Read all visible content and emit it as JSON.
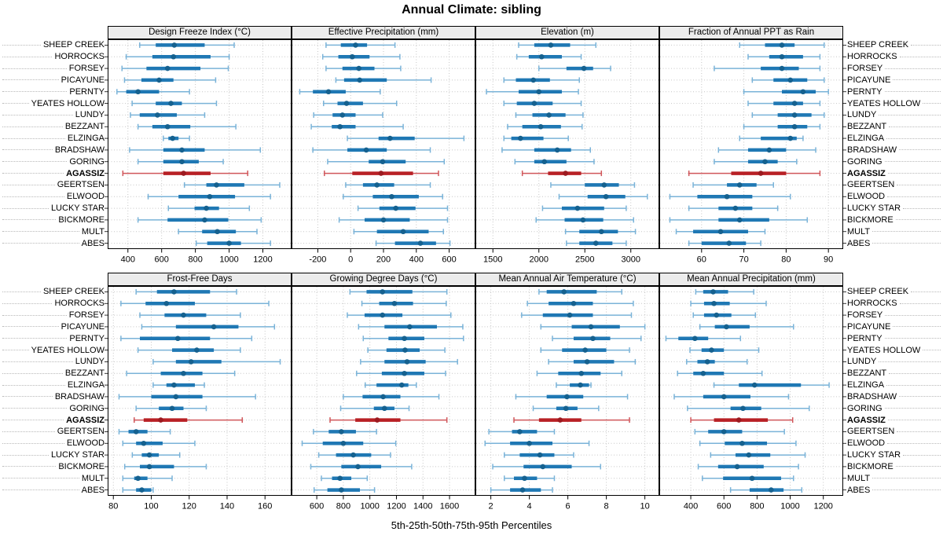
{
  "chart_data": {
    "type": "dotplot",
    "title": "Annual Climate: sibling",
    "footer": "5th-25th-50th-75th-95th Percentiles",
    "grid_on": true,
    "legend_position": "none",
    "grid": {
      "rows": 2,
      "cols": 4
    },
    "percentiles": [
      5,
      25,
      50,
      75,
      95
    ],
    "highlight_site": "AGASSIZ",
    "sites": [
      "SHEEP CREEK",
      "HORROCKS",
      "FORSEY",
      "PICAYUNE",
      "PERNTY",
      "YEATES HOLLOW",
      "LUNDY",
      "BEZZANT",
      "ELZINGA",
      "BRADSHAW",
      "GORING",
      "AGASSIZ",
      "GEERTSEN",
      "ELWOOD",
      "LUCKY STAR",
      "BICKMORE",
      "MULT",
      "ABES"
    ],
    "colors": {
      "series": "#1f78b4",
      "series_light": "#7ab3d8",
      "series_dark": "#15618f",
      "highlight": "#b82025",
      "highlight_light": "#d0565a",
      "highlight_dark": "#9c1a20",
      "gridline": "#c6c6c6",
      "strip_bg": "#ececec",
      "border": "#000000"
    },
    "panels": [
      {
        "title": "Design Freeze Index (°C)",
        "row": 0,
        "col": 0,
        "ticks": [
          400,
          600,
          800,
          1000,
          1200
        ],
        "xlim": [
          280,
          1370
        ],
        "values": [
          [
            470,
            565,
            675,
            855,
            1030
          ],
          [
            390,
            545,
            670,
            890,
            1000
          ],
          [
            365,
            510,
            635,
            830,
            995
          ],
          [
            380,
            480,
            585,
            670,
            920
          ],
          [
            335,
            390,
            460,
            585,
            765
          ],
          [
            425,
            565,
            655,
            720,
            925
          ],
          [
            415,
            470,
            575,
            690,
            855
          ],
          [
            460,
            545,
            635,
            770,
            1040
          ],
          [
            610,
            640,
            665,
            700,
            765
          ],
          [
            410,
            610,
            720,
            855,
            1185
          ],
          [
            460,
            610,
            720,
            820,
            965
          ],
          [
            370,
            610,
            730,
            890,
            1110
          ],
          [
            735,
            865,
            925,
            1090,
            1300
          ],
          [
            520,
            700,
            885,
            1035,
            1245
          ],
          [
            640,
            795,
            865,
            940,
            1120
          ],
          [
            460,
            635,
            855,
            995,
            1190
          ],
          [
            700,
            840,
            930,
            1040,
            1165
          ],
          [
            805,
            870,
            1000,
            1070,
            1245
          ]
        ]
      },
      {
        "title": "Effective Precipitation (mm)",
        "row": 0,
        "col": 1,
        "ticks": [
          -200,
          0,
          200,
          400,
          600
        ],
        "xlim": [
          -360,
          760
        ],
        "values": [
          [
            -150,
            -60,
            30,
            100,
            270
          ],
          [
            -170,
            -75,
            10,
            115,
            300
          ],
          [
            -150,
            -50,
            50,
            145,
            305
          ],
          [
            -90,
            -40,
            55,
            220,
            490
          ],
          [
            -310,
            -230,
            -135,
            -30,
            180
          ],
          [
            -165,
            -80,
            -25,
            75,
            280
          ],
          [
            -225,
            -110,
            -50,
            30,
            195
          ],
          [
            -240,
            -115,
            -65,
            30,
            320
          ],
          [
            -20,
            170,
            240,
            390,
            690
          ],
          [
            -230,
            -20,
            95,
            220,
            485
          ],
          [
            -140,
            110,
            195,
            335,
            570
          ],
          [
            -160,
            10,
            185,
            380,
            535
          ],
          [
            -30,
            75,
            160,
            265,
            485
          ],
          [
            -45,
            135,
            250,
            415,
            560
          ],
          [
            45,
            175,
            275,
            395,
            590
          ],
          [
            -70,
            85,
            200,
            360,
            590
          ],
          [
            20,
            160,
            320,
            475,
            565
          ],
          [
            155,
            270,
            425,
            520,
            605
          ]
        ]
      },
      {
        "title": "Elevation (m)",
        "row": 0,
        "col": 2,
        "ticks": [
          1500,
          2000,
          2500,
          3000
        ],
        "xlim": [
          1310,
          3310
        ],
        "values": [
          [
            1780,
            1950,
            2130,
            2340,
            2620
          ],
          [
            1760,
            1890,
            2030,
            2250,
            2460
          ],
          [
            2000,
            2300,
            2490,
            2590,
            2780
          ],
          [
            1620,
            1750,
            1940,
            2120,
            2440
          ],
          [
            1430,
            1780,
            2000,
            2250,
            2430
          ],
          [
            1620,
            1760,
            1950,
            2150,
            2460
          ],
          [
            1750,
            1930,
            2110,
            2290,
            2480
          ],
          [
            1660,
            1820,
            2020,
            2240,
            2470
          ],
          [
            1620,
            1700,
            1800,
            2050,
            2320
          ],
          [
            1600,
            1950,
            2200,
            2350,
            2560
          ],
          [
            1740,
            1950,
            2060,
            2300,
            2600
          ],
          [
            1820,
            2100,
            2290,
            2460,
            2680
          ],
          [
            2130,
            2500,
            2710,
            2870,
            3040
          ],
          [
            2220,
            2530,
            2730,
            2940,
            3180
          ],
          [
            2040,
            2250,
            2420,
            2710,
            2950
          ],
          [
            1970,
            2280,
            2480,
            2700,
            3030
          ],
          [
            2290,
            2440,
            2680,
            2860,
            3050
          ],
          [
            2300,
            2440,
            2620,
            2800,
            2950
          ]
        ]
      },
      {
        "title": "Fraction of Annual PPT as Rain",
        "row": 0,
        "col": 3,
        "ticks": [
          60,
          70,
          80,
          90
        ],
        "xlim": [
          50,
          93.5
        ],
        "values": [
          [
            69,
            75,
            79,
            82,
            89
          ],
          [
            71,
            76,
            79,
            84,
            88
          ],
          [
            63,
            74,
            79,
            83,
            88
          ],
          [
            72,
            77,
            81,
            85,
            89
          ],
          [
            70,
            79,
            84,
            87,
            90
          ],
          [
            71,
            77,
            82,
            84,
            88
          ],
          [
            72,
            78,
            82,
            86,
            89
          ],
          [
            70,
            78,
            82,
            85,
            88
          ],
          [
            69,
            74,
            81,
            82.5,
            84
          ],
          [
            64,
            71,
            76,
            80,
            87
          ],
          [
            63,
            71,
            75,
            78,
            82.5
          ],
          [
            57,
            67,
            74,
            80,
            88
          ],
          [
            58,
            66,
            69,
            73,
            77
          ],
          [
            52.5,
            59,
            66,
            72,
            81
          ],
          [
            57,
            64,
            68,
            72,
            78
          ],
          [
            52.5,
            64,
            69,
            76,
            85
          ],
          [
            54,
            58,
            64.5,
            71,
            75
          ],
          [
            57,
            60,
            66.5,
            70.5,
            74
          ]
        ]
      },
      {
        "title": "Frost-Free Days",
        "row": 1,
        "col": 0,
        "ticks": [
          80,
          100,
          120,
          140,
          160
        ],
        "xlim": [
          77,
          174
        ],
        "values": [
          [
            92,
            103,
            112,
            131,
            145
          ],
          [
            84,
            97,
            108,
            123,
            162
          ],
          [
            94,
            107,
            117,
            129,
            147
          ],
          [
            95,
            113,
            133,
            146,
            165
          ],
          [
            84,
            94,
            114,
            131,
            153
          ],
          [
            93,
            111,
            124,
            133,
            147
          ],
          [
            101,
            113,
            121,
            137,
            168
          ],
          [
            87,
            105,
            117,
            127,
            144
          ],
          [
            101,
            108,
            112,
            123,
            128
          ],
          [
            83,
            100,
            113,
            127,
            155
          ],
          [
            92,
            104,
            111,
            117,
            129
          ],
          [
            91,
            96,
            105,
            119,
            148
          ],
          [
            83,
            88,
            92,
            98,
            110
          ],
          [
            85,
            92,
            96,
            106,
            123
          ],
          [
            90,
            95,
            99,
            104,
            115
          ],
          [
            86,
            94,
            99,
            112,
            129
          ],
          [
            85,
            91,
            93,
            98,
            111
          ],
          [
            85,
            92,
            95,
            100,
            101
          ]
        ]
      },
      {
        "title": "Growing Degree Days (°C)",
        "row": 1,
        "col": 1,
        "ticks": [
          600,
          800,
          1000,
          1200,
          1400,
          1600
        ],
        "xlim": [
          410,
          1795
        ],
        "values": [
          [
            850,
            975,
            1095,
            1320,
            1580
          ],
          [
            940,
            1070,
            1185,
            1325,
            1575
          ],
          [
            830,
            960,
            1095,
            1245,
            1610
          ],
          [
            915,
            1110,
            1300,
            1505,
            1700
          ],
          [
            950,
            1140,
            1260,
            1410,
            1705
          ],
          [
            985,
            1125,
            1265,
            1375,
            1565
          ],
          [
            930,
            1110,
            1280,
            1420,
            1660
          ],
          [
            900,
            1090,
            1260,
            1410,
            1570
          ],
          [
            965,
            1050,
            1240,
            1290,
            1350
          ],
          [
            800,
            945,
            1100,
            1230,
            1520
          ],
          [
            780,
            1030,
            1110,
            1185,
            1295
          ],
          [
            700,
            890,
            1055,
            1230,
            1580
          ],
          [
            575,
            690,
            785,
            895,
            1050
          ],
          [
            490,
            645,
            800,
            950,
            1195
          ],
          [
            615,
            745,
            875,
            1010,
            1155
          ],
          [
            555,
            785,
            910,
            1085,
            1315
          ],
          [
            635,
            715,
            775,
            860,
            980
          ],
          [
            580,
            680,
            785,
            925,
            1035
          ]
        ]
      },
      {
        "title": "Mean Annual Air Temperature (°C)",
        "row": 1,
        "col": 2,
        "ticks": [
          2,
          4,
          6,
          8,
          10
        ],
        "xlim": [
          1.2,
          10.75
        ],
        "values": [
          [
            4.5,
            4.9,
            5.8,
            7.5,
            8.8
          ],
          [
            3.9,
            5.0,
            6.3,
            7.3,
            9.4
          ],
          [
            3.6,
            4.7,
            6.1,
            7.3,
            9.3
          ],
          [
            4.6,
            6.2,
            7.2,
            8.7,
            10.0
          ],
          [
            5.2,
            6.3,
            7.3,
            8.2,
            9.8
          ],
          [
            4.6,
            5.7,
            6.9,
            8.0,
            9.2
          ],
          [
            5.0,
            6.3,
            7.0,
            8.4,
            9.5
          ],
          [
            4.4,
            5.5,
            6.7,
            7.7,
            8.8
          ],
          [
            5.4,
            6.1,
            6.65,
            7.1,
            7.2
          ],
          [
            3.3,
            4.9,
            5.95,
            6.8,
            9.1
          ],
          [
            4.2,
            5.4,
            5.9,
            6.5,
            7.6
          ],
          [
            3.2,
            4.5,
            5.6,
            6.7,
            9.2
          ],
          [
            1.9,
            3.1,
            3.5,
            4.4,
            5.3
          ],
          [
            1.7,
            3.0,
            4.0,
            5.2,
            7.1
          ],
          [
            2.7,
            3.5,
            4.55,
            5.3,
            6.3
          ],
          [
            2.1,
            3.7,
            4.7,
            6.2,
            7.7
          ],
          [
            2.7,
            3.2,
            3.75,
            4.4,
            5.3
          ],
          [
            2.0,
            3.0,
            3.65,
            4.6,
            5.2
          ]
        ]
      },
      {
        "title": "Mean Annual Precipitation (mm)",
        "row": 1,
        "col": 3,
        "ticks": [
          400,
          600,
          800,
          1000,
          1200
        ],
        "xlim": [
          210,
          1320
        ],
        "values": [
          [
            430,
            475,
            535,
            625,
            780
          ],
          [
            400,
            480,
            540,
            635,
            855
          ],
          [
            415,
            480,
            555,
            645,
            790
          ],
          [
            455,
            545,
            615,
            755,
            1020
          ],
          [
            250,
            325,
            425,
            505,
            700
          ],
          [
            395,
            465,
            525,
            600,
            810
          ],
          [
            375,
            440,
            500,
            545,
            740
          ],
          [
            320,
            415,
            475,
            600,
            830
          ],
          [
            540,
            690,
            785,
            1065,
            1235
          ],
          [
            300,
            475,
            600,
            760,
            990
          ],
          [
            380,
            640,
            715,
            825,
            1115
          ],
          [
            400,
            540,
            690,
            865,
            1015
          ],
          [
            425,
            505,
            600,
            710,
            965
          ],
          [
            455,
            605,
            710,
            860,
            1035
          ],
          [
            520,
            670,
            750,
            880,
            1090
          ],
          [
            445,
            565,
            680,
            840,
            1050
          ],
          [
            470,
            595,
            770,
            945,
            1020
          ],
          [
            640,
            755,
            885,
            960,
            1070
          ]
        ]
      }
    ]
  }
}
